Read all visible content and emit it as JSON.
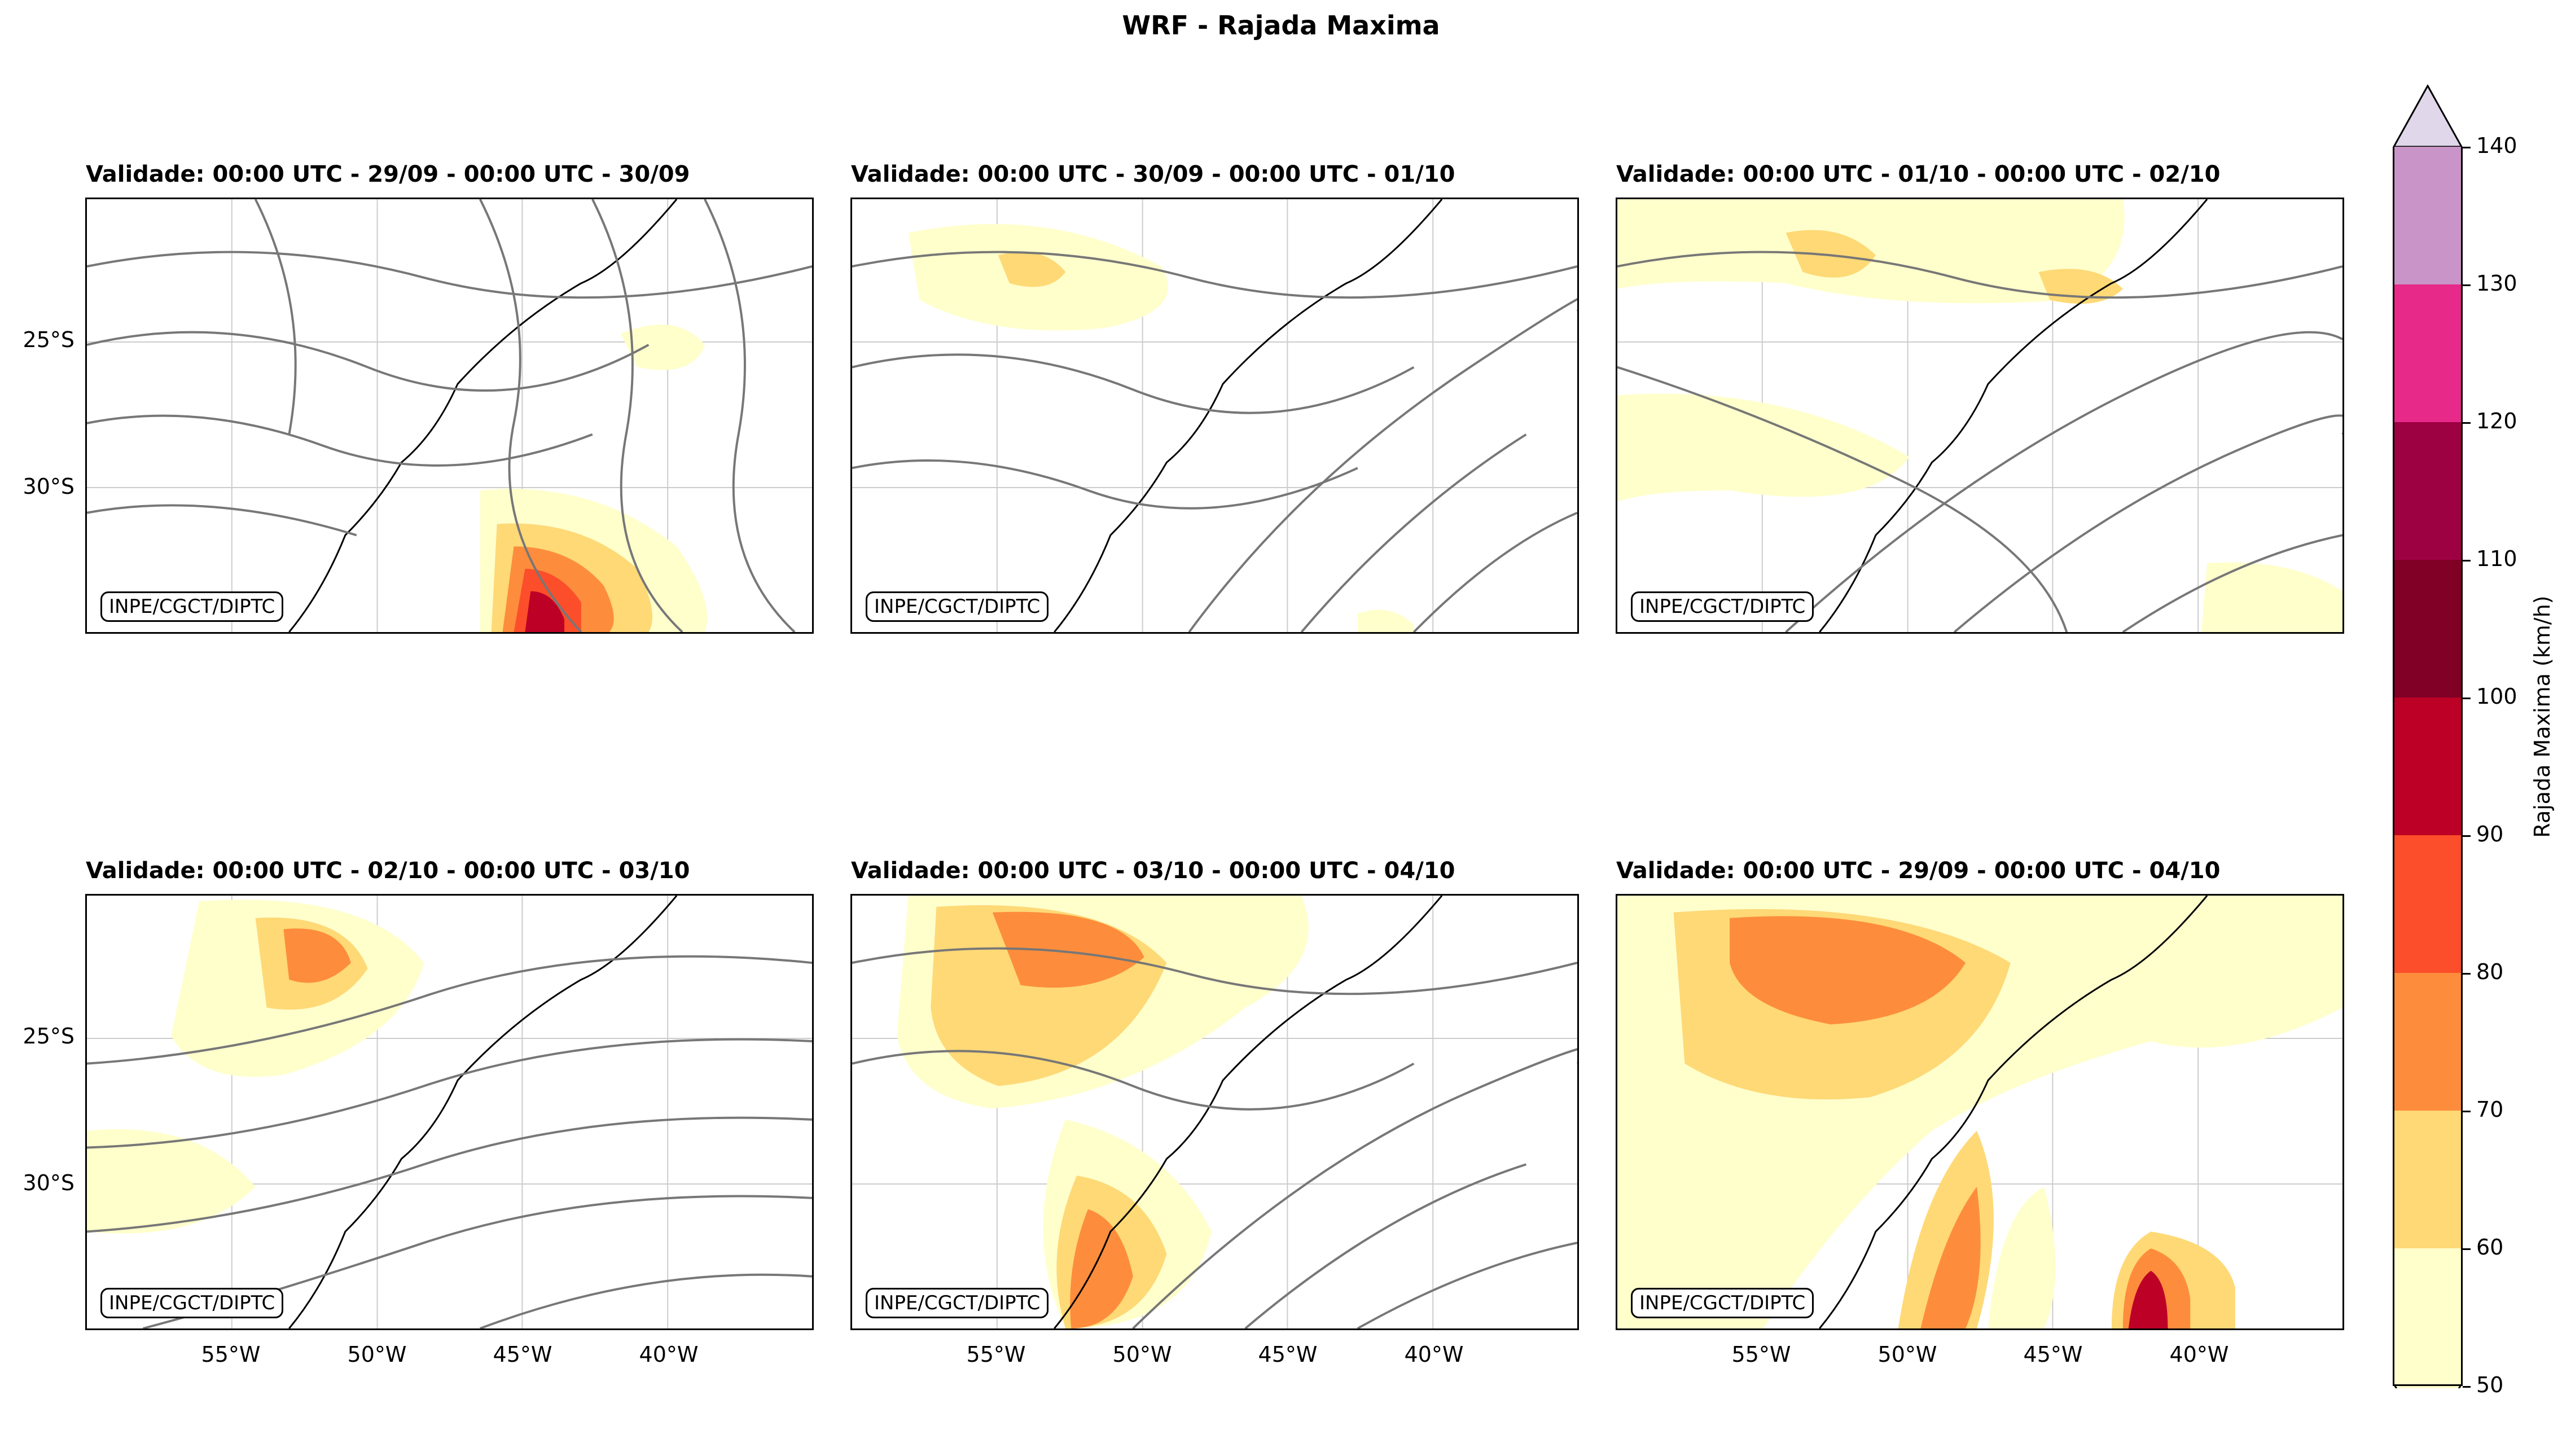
{
  "figure_title": "WRF - Rajada Maxima",
  "credit": "INPE/CGCT/DIPTC",
  "lat_labels": [
    "25°S",
    "30°S"
  ],
  "lon_labels": [
    "55°W",
    "50°W",
    "45°W",
    "40°W"
  ],
  "panels": [
    {
      "title": "Validade: 00:00 UTC - 29/09 - 00:00 UTC - 30/09"
    },
    {
      "title": "Validade: 00:00 UTC - 30/09 - 00:00 UTC - 01/10"
    },
    {
      "title": "Validade: 00:00 UTC - 01/10 - 00:00 UTC - 02/10"
    },
    {
      "title": "Validade: 00:00 UTC - 02/10 - 00:00 UTC - 03/10"
    },
    {
      "title": "Validade: 00:00 UTC - 03/10 - 00:00 UTC - 04/10"
    },
    {
      "title": "Validade: 00:00 UTC - 29/09 - 00:00 UTC - 04/10"
    }
  ],
  "colorbar": {
    "label": "Rajada Maxima (km/h)",
    "ticks": [
      "140",
      "130",
      "120",
      "110",
      "100",
      "90",
      "80",
      "70",
      "60",
      "50"
    ],
    "colors": [
      "#ffffcc",
      "#fed976",
      "#fd8d3c",
      "#fc4e2a",
      "#bd0026",
      "#800026",
      "#9e0142",
      "#e7298a",
      "#c994c7",
      "#e0d8ea"
    ]
  }
}
